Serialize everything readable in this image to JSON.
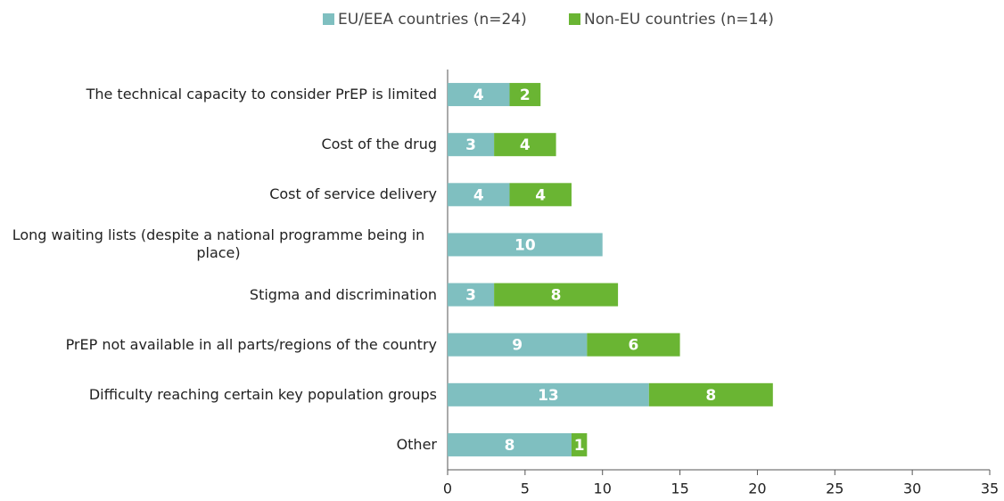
{
  "chart_data": {
    "type": "stacked-barh",
    "categories": [
      "The technical capacity to consider PrEP is limited",
      "Cost of the drug",
      "Cost of service delivery",
      "Long waiting lists (despite a national programme being in place)",
      "Stigma and discrimination",
      "PrEP not available in all parts/regions of the country",
      "Difficulty reaching certain key population groups",
      "Other"
    ],
    "series": [
      {
        "name": "EU/EEA countries (n=24)",
        "color": "#7fbfc0",
        "values": [
          4,
          3,
          4,
          10,
          3,
          9,
          13,
          8
        ]
      },
      {
        "name": "Non-EU countries (n=14)",
        "color": "#6ab533",
        "values": [
          2,
          4,
          4,
          null,
          8,
          6,
          8,
          1
        ]
      }
    ],
    "xlim": [
      0,
      35
    ],
    "xticks": [
      0,
      5,
      10,
      15,
      20,
      25,
      30,
      35
    ],
    "legend": "top"
  }
}
